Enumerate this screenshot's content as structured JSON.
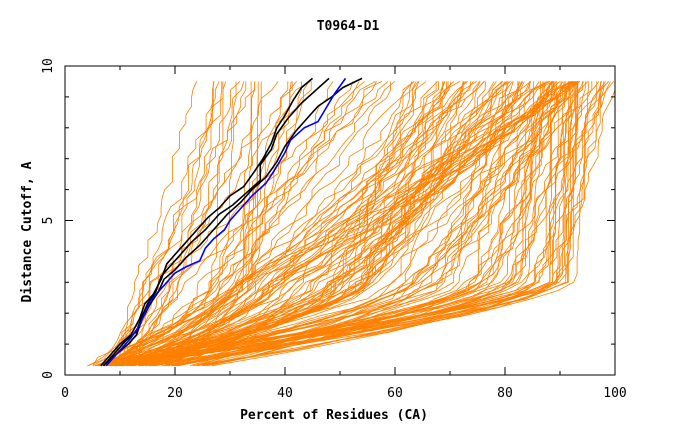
{
  "chart_data": {
    "type": "line",
    "title": "T0964-D1",
    "xlabel": "Percent of Residues (CA)",
    "ylabel": "Distance Cutoff, A",
    "xlim": [
      0,
      100
    ],
    "ylim": [
      0,
      10
    ],
    "x_ticks": [
      0,
      20,
      40,
      60,
      80,
      100
    ],
    "y_ticks": [
      0,
      5,
      10
    ],
    "x_tick_labels": [
      "0",
      "20",
      "40",
      "60",
      "80",
      "100"
    ],
    "y_tick_labels": [
      "0",
      "5",
      "10"
    ],
    "grid": false,
    "background_series_color": "#ff8000",
    "background_series_count": 160,
    "background_series_distribution": [
      {
        "group": "steep",
        "share": 0.22,
        "x_at_0.3A": [
          4,
          12
        ],
        "x_at_3A": [
          12,
          34
        ],
        "x_at_9.5A": [
          22,
          66
        ]
      },
      {
        "group": "medium",
        "share": 0.43,
        "x_at_0.3A": [
          5,
          20
        ],
        "x_at_3A": [
          30,
          62
        ],
        "x_at_9.5A": [
          62,
          94
        ]
      },
      {
        "group": "shallow",
        "share": 0.35,
        "x_at_0.3A": [
          6,
          26
        ],
        "x_at_3A": [
          62,
          92
        ],
        "x_at_9.5A": [
          80,
          100
        ]
      }
    ],
    "highlighted_series": [
      {
        "name": "black-1",
        "color": "#000000",
        "points": [
          [
            6.5,
            0.3
          ],
          [
            8,
            0.6
          ],
          [
            10,
            1.0
          ],
          [
            12,
            1.3
          ],
          [
            13.5,
            1.8
          ],
          [
            14.5,
            2.3
          ],
          [
            16,
            2.6
          ],
          [
            17.5,
            3.1
          ],
          [
            18.5,
            3.6
          ],
          [
            20,
            3.9
          ],
          [
            22,
            4.3
          ],
          [
            24,
            4.7
          ],
          [
            26,
            5.1
          ],
          [
            28,
            5.4
          ],
          [
            30,
            5.8
          ],
          [
            32.5,
            6.1
          ],
          [
            34.5,
            6.6
          ],
          [
            36,
            7.0
          ],
          [
            37.5,
            7.5
          ],
          [
            38.5,
            8.0
          ],
          [
            40,
            8.4
          ],
          [
            41.5,
            8.9
          ],
          [
            43,
            9.3
          ],
          [
            45,
            9.6
          ]
        ]
      },
      {
        "name": "black-2",
        "color": "#000000",
        "points": [
          [
            7,
            0.3
          ],
          [
            9,
            0.7
          ],
          [
            11,
            1.1
          ],
          [
            13,
            1.4
          ],
          [
            14,
            1.9
          ],
          [
            15,
            2.3
          ],
          [
            16.5,
            2.7
          ],
          [
            17.5,
            3.2
          ],
          [
            19,
            3.5
          ],
          [
            21,
            3.9
          ],
          [
            23,
            4.3
          ],
          [
            25.5,
            4.7
          ],
          [
            28,
            5.2
          ],
          [
            30.5,
            5.5
          ],
          [
            33,
            5.9
          ],
          [
            35.5,
            6.3
          ],
          [
            35.5,
            6.8
          ],
          [
            37.5,
            7.3
          ],
          [
            38.5,
            7.8
          ],
          [
            40.5,
            8.3
          ],
          [
            43,
            8.8
          ],
          [
            45.5,
            9.2
          ],
          [
            48,
            9.6
          ]
        ]
      },
      {
        "name": "black-3",
        "color": "#000000",
        "points": [
          [
            7,
            0.3
          ],
          [
            9.5,
            0.7
          ],
          [
            11.5,
            1.0
          ],
          [
            13,
            1.3
          ],
          [
            14,
            1.8
          ],
          [
            15.5,
            2.3
          ],
          [
            17,
            2.7
          ],
          [
            18,
            3.1
          ],
          [
            20,
            3.4
          ],
          [
            22,
            3.8
          ],
          [
            24.5,
            4.2
          ],
          [
            26.5,
            4.6
          ],
          [
            29.5,
            5.2
          ],
          [
            32,
            5.6
          ],
          [
            34,
            6.0
          ],
          [
            36.5,
            6.4
          ],
          [
            38.5,
            6.9
          ],
          [
            40,
            7.4
          ],
          [
            42,
            7.9
          ],
          [
            44,
            8.3
          ],
          [
            46,
            8.7
          ],
          [
            48.5,
            9.0
          ],
          [
            50.5,
            9.3
          ],
          [
            54,
            9.6
          ]
        ]
      },
      {
        "name": "blue",
        "color": "#0000ff",
        "points": [
          [
            7.5,
            0.3
          ],
          [
            9,
            0.6
          ],
          [
            10.5,
            0.9
          ],
          [
            12,
            1.2
          ],
          [
            13.5,
            1.6
          ],
          [
            14.5,
            2.0
          ],
          [
            15.5,
            2.4
          ],
          [
            17,
            2.7
          ],
          [
            18.5,
            3.0
          ],
          [
            20,
            3.3
          ],
          [
            22,
            3.5
          ],
          [
            24.5,
            3.7
          ],
          [
            25.5,
            4.1
          ],
          [
            27,
            4.4
          ],
          [
            29,
            4.7
          ],
          [
            30,
            5.0
          ],
          [
            32,
            5.4
          ],
          [
            34,
            5.8
          ],
          [
            36.5,
            6.2
          ],
          [
            38,
            6.6
          ],
          [
            40,
            7.2
          ],
          [
            41,
            7.6
          ],
          [
            43.5,
            8.0
          ],
          [
            46,
            8.2
          ],
          [
            47,
            8.5
          ],
          [
            49,
            9.1
          ],
          [
            51,
            9.6
          ]
        ]
      }
    ]
  }
}
